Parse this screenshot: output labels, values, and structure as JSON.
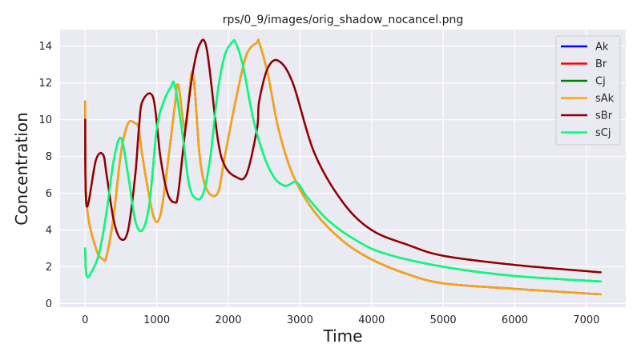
{
  "chart_data": {
    "type": "line",
    "title": "rps/0_9/images/orig_shadow_nocancel.png",
    "xlabel": "Time",
    "ylabel": "Concentration",
    "xlim": [
      -350,
      7550
    ],
    "ylim": [
      -0.2,
      14.9
    ],
    "xticks": [
      0,
      1000,
      2000,
      3000,
      4000,
      5000,
      6000,
      7000
    ],
    "yticks": [
      0,
      2,
      4,
      6,
      8,
      10,
      12,
      14
    ],
    "grid": true,
    "legend_position": "top-right",
    "series": [
      {
        "name": "Ak",
        "color": "#0000ff",
        "x": [
          0,
          20,
          150,
          250,
          300,
          400,
          500,
          600,
          700,
          750,
          800,
          950,
          1050,
          1150,
          1250,
          1300,
          1400,
          1500,
          1600,
          1700,
          1850,
          1950,
          2100,
          2250,
          2400,
          2430,
          2550,
          2700,
          2900,
          3200,
          3600,
          4000,
          4500,
          5000,
          6000,
          7200
        ],
        "y": [
          11.0,
          5.5,
          3.0,
          2.4,
          2.6,
          4.8,
          8.2,
          9.8,
          9.8,
          9.5,
          8.0,
          4.8,
          4.8,
          7.5,
          10.7,
          11.9,
          9.5,
          12.6,
          8.0,
          6.2,
          6.0,
          8.0,
          11.0,
          13.5,
          14.2,
          14.2,
          12.5,
          9.5,
          7.0,
          5.0,
          3.4,
          2.4,
          1.6,
          1.1,
          0.8,
          0.5
        ]
      },
      {
        "name": "Br",
        "color": "#ff0000",
        "x": [
          0,
          20,
          150,
          250,
          300,
          400,
          500,
          600,
          700,
          750,
          800,
          950,
          1050,
          1150,
          1250,
          1300,
          1400,
          1500,
          1600,
          1700,
          1850,
          1950,
          2100,
          2250,
          2400,
          2430,
          2550,
          2700,
          2900,
          3200,
          3600,
          4000,
          4500,
          5000,
          6000,
          7200
        ],
        "y": [
          10.0,
          5.3,
          7.8,
          8.1,
          7.0,
          4.5,
          3.5,
          4.0,
          7.0,
          9.5,
          11.0,
          11.2,
          8.0,
          6.0,
          5.5,
          6.0,
          9.5,
          12.5,
          14.1,
          13.8,
          9.0,
          7.5,
          6.9,
          7.0,
          9.5,
          11.0,
          12.8,
          13.2,
          12.0,
          8.2,
          5.5,
          4.0,
          3.2,
          2.6,
          2.1,
          1.7
        ]
      },
      {
        "name": "Cj",
        "color": "#008000",
        "x": [
          0,
          20,
          100,
          200,
          300,
          400,
          500,
          600,
          700,
          800,
          900,
          1000,
          1100,
          1200,
          1250,
          1350,
          1450,
          1550,
          1650,
          1750,
          1850,
          1950,
          2050,
          2100,
          2200,
          2350,
          2500,
          2650,
          2800,
          2950,
          3100,
          3400,
          3800,
          4200,
          5000,
          6000,
          7200
        ],
        "y": [
          3.0,
          1.5,
          1.8,
          2.8,
          5.0,
          7.8,
          9.0,
          7.0,
          4.5,
          4.0,
          5.5,
          9.5,
          11.0,
          11.8,
          11.9,
          9.5,
          6.5,
          5.7,
          6.0,
          8.0,
          11.5,
          13.5,
          14.2,
          14.2,
          13.0,
          10.0,
          8.0,
          6.8,
          6.4,
          6.6,
          5.8,
          4.5,
          3.4,
          2.7,
          2.0,
          1.5,
          1.2
        ]
      },
      {
        "name": "sAk",
        "color": "#ffa500",
        "x": [
          0,
          20,
          150,
          250,
          300,
          400,
          500,
          600,
          700,
          750,
          800,
          950,
          1050,
          1150,
          1250,
          1300,
          1400,
          1500,
          1600,
          1700,
          1850,
          1950,
          2100,
          2250,
          2400,
          2430,
          2550,
          2700,
          2900,
          3200,
          3600,
          4000,
          4500,
          5000,
          6000,
          7200
        ],
        "y": [
          11.0,
          5.5,
          3.0,
          2.4,
          2.6,
          4.8,
          8.2,
          9.8,
          9.8,
          9.5,
          8.0,
          4.8,
          4.8,
          7.5,
          10.7,
          11.9,
          9.5,
          12.6,
          8.0,
          6.2,
          6.0,
          8.0,
          11.0,
          13.5,
          14.2,
          14.2,
          12.5,
          9.5,
          7.0,
          5.0,
          3.4,
          2.4,
          1.6,
          1.1,
          0.8,
          0.5
        ]
      },
      {
        "name": "sBr",
        "color": "#8b0000",
        "x": [
          0,
          20,
          150,
          250,
          300,
          400,
          500,
          600,
          700,
          750,
          800,
          950,
          1050,
          1150,
          1250,
          1300,
          1400,
          1500,
          1600,
          1700,
          1850,
          1950,
          2100,
          2250,
          2400,
          2430,
          2550,
          2700,
          2900,
          3200,
          3600,
          4000,
          4500,
          5000,
          6000,
          7200
        ],
        "y": [
          10.0,
          5.3,
          7.8,
          8.1,
          7.0,
          4.5,
          3.5,
          4.0,
          7.0,
          9.5,
          11.0,
          11.2,
          8.0,
          6.0,
          5.5,
          6.0,
          9.5,
          12.5,
          14.1,
          13.8,
          9.0,
          7.5,
          6.9,
          7.0,
          9.5,
          11.0,
          12.8,
          13.2,
          12.0,
          8.2,
          5.5,
          4.0,
          3.2,
          2.6,
          2.1,
          1.7
        ]
      },
      {
        "name": "sCj",
        "color": "#00ff7f",
        "x": [
          0,
          20,
          100,
          200,
          300,
          400,
          500,
          600,
          700,
          800,
          900,
          1000,
          1100,
          1200,
          1250,
          1350,
          1450,
          1550,
          1650,
          1750,
          1850,
          1950,
          2050,
          2100,
          2200,
          2350,
          2500,
          2650,
          2800,
          2950,
          3100,
          3400,
          3800,
          4200,
          5000,
          6000,
          7200
        ],
        "y": [
          3.0,
          1.5,
          1.8,
          2.8,
          5.0,
          7.8,
          9.0,
          7.0,
          4.5,
          4.0,
          5.5,
          9.5,
          11.0,
          11.8,
          11.9,
          9.5,
          6.5,
          5.7,
          6.0,
          8.0,
          11.5,
          13.5,
          14.2,
          14.2,
          13.0,
          10.0,
          8.0,
          6.8,
          6.4,
          6.6,
          5.8,
          4.5,
          3.4,
          2.7,
          2.0,
          1.5,
          1.2
        ]
      }
    ]
  }
}
